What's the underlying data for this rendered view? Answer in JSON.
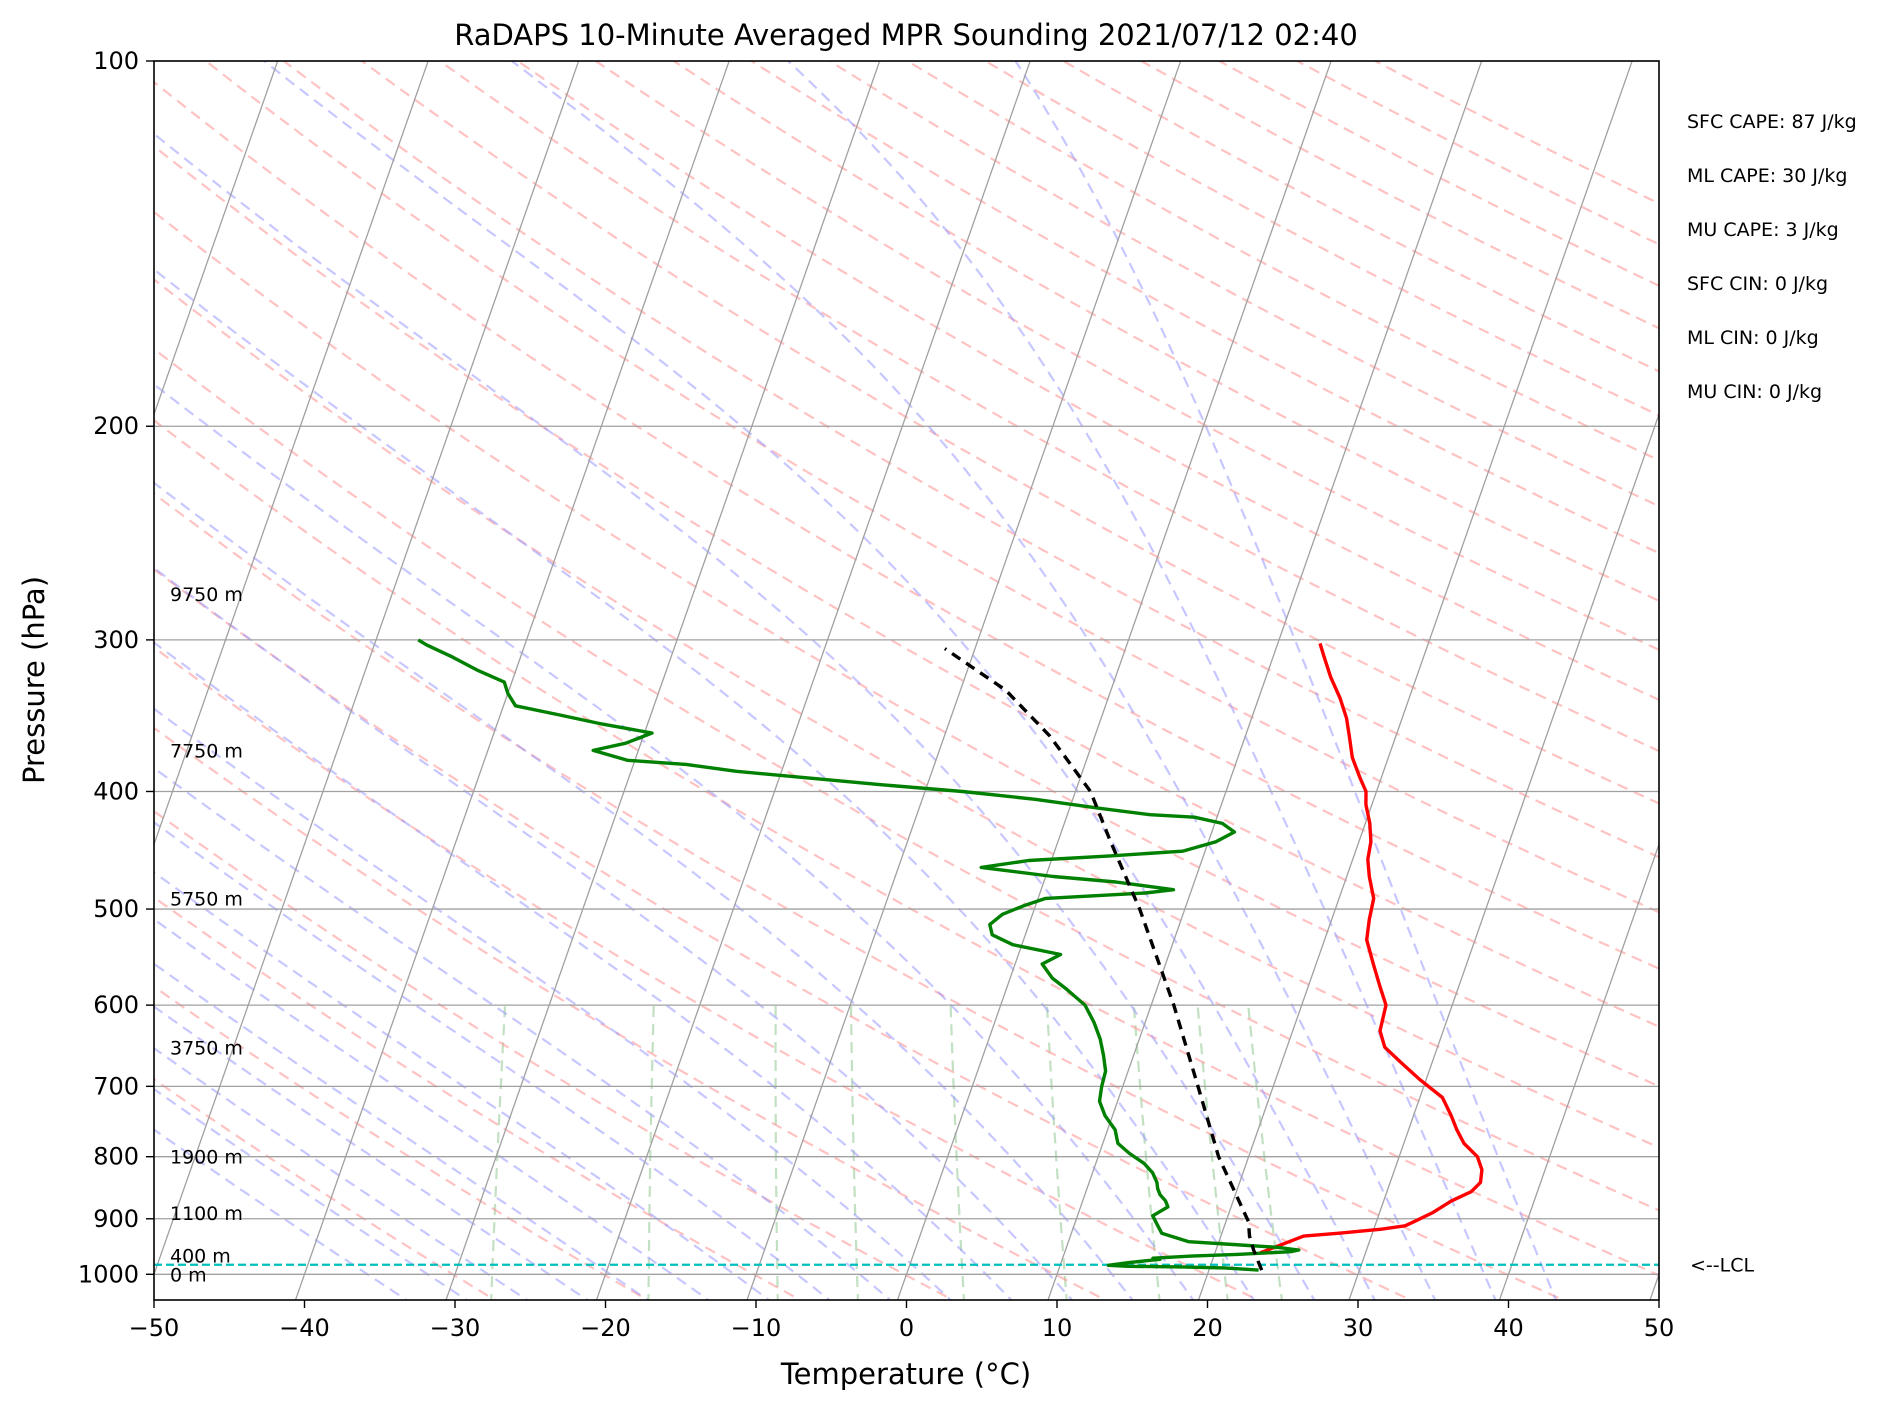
{
  "chart_data": {
    "type": "line",
    "title": "RaDAPS 10-Minute Averaged MPR Sounding 2021/07/12 02:40",
    "xlabel": "Temperature (°C)",
    "ylabel": "Pressure (hPa)",
    "xlim": [
      -50,
      50
    ],
    "ylim": [
      1050,
      100
    ],
    "y_scale": "log",
    "skew": "skew-T",
    "x_ticks": [
      -50,
      -40,
      -30,
      -20,
      -10,
      0,
      10,
      20,
      30,
      40,
      50
    ],
    "x_tick_labels": [
      "−50",
      "−40",
      "−30",
      "−20",
      "−10",
      "0",
      "10",
      "20",
      "30",
      "40",
      "50"
    ],
    "y_ticks": [
      100,
      200,
      300,
      400,
      500,
      600,
      700,
      800,
      900,
      1000
    ],
    "y_tick_labels": [
      "100",
      "200",
      "300",
      "400",
      "500",
      "600",
      "700",
      "800",
      "900",
      "1000"
    ],
    "grid": true,
    "colors": {
      "temperature": "#ff0000",
      "dewpoint": "#008000",
      "parcel": "#000000",
      "lcl": "#00bfbf",
      "isotherm": "#a0a0a0",
      "dry_adiabat": "#ff9999",
      "moist_adiabat": "#9999ff",
      "mixing_ratio": "#99cc99"
    },
    "series": [
      {
        "key": "temperature",
        "points": [
          [
            23.0,
            960
          ],
          [
            25.5,
            930
          ],
          [
            27.8,
            925
          ],
          [
            30.5,
            918
          ],
          [
            32.0,
            912
          ],
          [
            32.5,
            905
          ],
          [
            33.5,
            890
          ],
          [
            34.5,
            870
          ],
          [
            35.6,
            855
          ],
          [
            36.0,
            840
          ],
          [
            35.8,
            820
          ],
          [
            35.2,
            800
          ],
          [
            34.0,
            780
          ],
          [
            33.2,
            760
          ],
          [
            32.5,
            740
          ],
          [
            31.5,
            715
          ],
          [
            29.5,
            690
          ],
          [
            28.0,
            670
          ],
          [
            26.5,
            650
          ],
          [
            25.8,
            630
          ],
          [
            25.6,
            600
          ],
          [
            24.8,
            580
          ],
          [
            23.8,
            555
          ],
          [
            22.8,
            530
          ],
          [
            22.5,
            510
          ],
          [
            22.3,
            490
          ],
          [
            21.5,
            470
          ],
          [
            21.0,
            455
          ],
          [
            20.8,
            440
          ],
          [
            20.3,
            425
          ],
          [
            19.6,
            410
          ],
          [
            19.3,
            400
          ],
          [
            18.6,
            390
          ],
          [
            17.6,
            375
          ],
          [
            16.9,
            360
          ],
          [
            16.3,
            348
          ],
          [
            15.4,
            335
          ],
          [
            14.3,
            322
          ],
          [
            13.4,
            310
          ],
          [
            12.8,
            302
          ]
        ]
      },
      {
        "key": "dewpoint",
        "points": [
          [
            23.3,
            992
          ],
          [
            21.0,
            988
          ],
          [
            18.0,
            986
          ],
          [
            14.5,
            985
          ],
          [
            13.2,
            983
          ],
          [
            14.5,
            978
          ],
          [
            16.5,
            972
          ],
          [
            16.0,
            970
          ],
          [
            18.5,
            966
          ],
          [
            21.5,
            963
          ],
          [
            25.0,
            958
          ],
          [
            25.5,
            955
          ],
          [
            24.0,
            950
          ],
          [
            21.0,
            945
          ],
          [
            18.0,
            940
          ],
          [
            16.0,
            925
          ],
          [
            15.5,
            910
          ],
          [
            15.0,
            895
          ],
          [
            15.8,
            880
          ],
          [
            15.5,
            870
          ],
          [
            15.0,
            860
          ],
          [
            14.7,
            850
          ],
          [
            14.5,
            840
          ],
          [
            14.0,
            825
          ],
          [
            13.2,
            810
          ],
          [
            12.0,
            795
          ],
          [
            11.0,
            780
          ],
          [
            10.5,
            760
          ],
          [
            9.5,
            740
          ],
          [
            8.8,
            720
          ],
          [
            8.6,
            700
          ],
          [
            8.5,
            680
          ],
          [
            8.0,
            660
          ],
          [
            7.4,
            640
          ],
          [
            6.6,
            620
          ],
          [
            5.6,
            600
          ],
          [
            4.0,
            582
          ],
          [
            2.8,
            570
          ],
          [
            1.8,
            555
          ],
          [
            2.8,
            545
          ],
          [
            -0.6,
            535
          ],
          [
            -2.2,
            525
          ],
          [
            -2.6,
            515
          ],
          [
            -2.0,
            505
          ],
          [
            -0.8,
            497
          ],
          [
            0.5,
            490
          ],
          [
            7.0,
            485
          ],
          [
            8.8,
            482
          ],
          [
            4.8,
            475
          ],
          [
            0.5,
            470
          ],
          [
            -4.5,
            462
          ],
          [
            -1.5,
            456
          ],
          [
            3.8,
            452
          ],
          [
            8.5,
            448
          ],
          [
            10.5,
            440
          ],
          [
            11.5,
            432
          ],
          [
            10.5,
            425
          ],
          [
            8.5,
            420
          ],
          [
            5.5,
            418
          ],
          [
            2.0,
            413
          ],
          [
            -2.5,
            406
          ],
          [
            -7.5,
            400
          ],
          [
            -13.0,
            395
          ],
          [
            -18.0,
            390
          ],
          [
            -23.0,
            385
          ],
          [
            -26.5,
            380
          ],
          [
            -30.5,
            377
          ],
          [
            -33.0,
            370
          ],
          [
            -31.0,
            365
          ],
          [
            -29.5,
            358
          ],
          [
            -33.0,
            352
          ],
          [
            -36.0,
            346
          ],
          [
            -39.2,
            340
          ],
          [
            -40.0,
            332
          ],
          [
            -40.5,
            325
          ],
          [
            -42.5,
            318
          ],
          [
            -44.5,
            310
          ],
          [
            -46.5,
            303
          ],
          [
            -47.2,
            300
          ]
        ]
      },
      {
        "key": "parcel",
        "points": [
          [
            23.5,
            992
          ],
          [
            22.5,
            955
          ],
          [
            21.9,
            930
          ],
          [
            21.5,
            905
          ],
          [
            18.0,
            800
          ],
          [
            15.0,
            700
          ],
          [
            11.5,
            600
          ],
          [
            7.0,
            500
          ],
          [
            3.5,
            440
          ],
          [
            1.0,
            400
          ],
          [
            -3.0,
            360
          ],
          [
            -7.0,
            330
          ],
          [
            -12.0,
            305
          ]
        ]
      }
    ],
    "lcl_pressure": 982,
    "lcl_label": "<--LCL",
    "height_labels": [
      {
        "label": "9750 m",
        "p": 275
      },
      {
        "label": "7750 m",
        "p": 370
      },
      {
        "label": "5750 m",
        "p": 490
      },
      {
        "label": "3750 m",
        "p": 650
      },
      {
        "label": "1900 m",
        "p": 800
      },
      {
        "label": "1100 m",
        "p": 890
      },
      {
        "label": "400 m",
        "p": 965
      },
      {
        "label": "0 m",
        "p": 1000
      }
    ]
  },
  "indices": [
    {
      "label": "SFC CAPE: 87 J/kg"
    },
    {
      "label": "ML CAPE: 30 J/kg"
    },
    {
      "label": "MU CAPE: 3 J/kg"
    },
    {
      "label": "SFC CIN: 0 J/kg"
    },
    {
      "label": "ML CIN: 0 J/kg"
    },
    {
      "label": "MU CIN: 0 J/kg"
    }
  ]
}
